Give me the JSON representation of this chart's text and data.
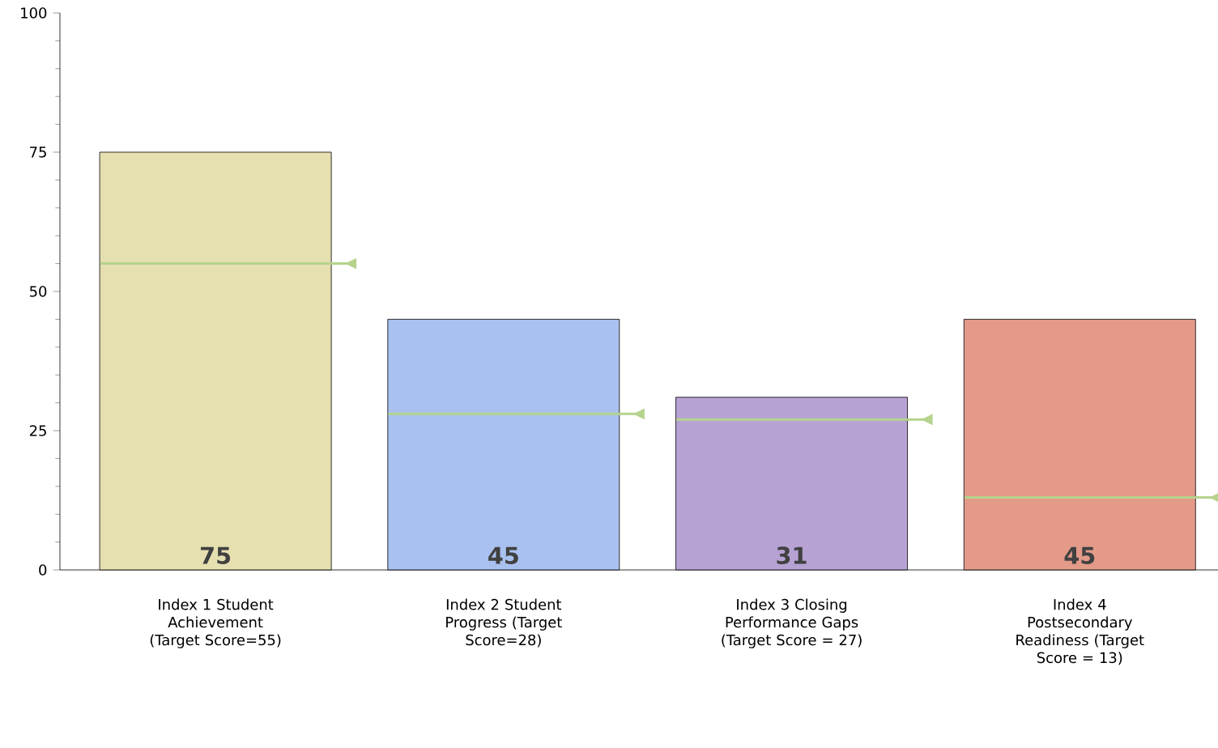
{
  "chart_data": {
    "type": "bar",
    "categories": [
      "Index 1 Student Achievement (Target Score=55)",
      "Index 2 Student Progress (Target Score=28)",
      "Index 3 Closing Performance Gaps (Target Score = 27)",
      "Index 4 Postsecondary Readiness (Target Score = 13)"
    ],
    "series": [
      {
        "values": [
          75,
          45,
          31,
          45
        ],
        "colors": [
          "#e6dfb0",
          "#a9c1ef",
          "#b7a2d4",
          "#e39a88"
        ],
        "value_labels": [
          "75",
          "45",
          "31",
          "45"
        ]
      }
    ],
    "ref_lines": [
      {
        "axis": "y",
        "value": 55,
        "color": "#b5d38c"
      },
      {
        "axis": "y",
        "value": 28,
        "color": "#b5d38c"
      },
      {
        "axis": "y",
        "value": 27,
        "color": "#b5d38c"
      },
      {
        "axis": "y",
        "value": 13,
        "color": "#b5d38c"
      }
    ],
    "ylim": [
      0,
      100
    ],
    "yticks": [
      0,
      25,
      50,
      75,
      100
    ],
    "grid": false
  }
}
